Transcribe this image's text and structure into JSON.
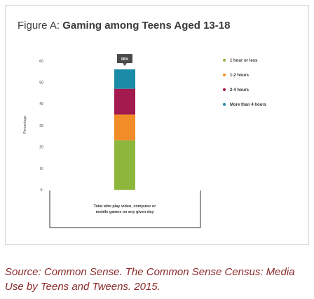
{
  "figure": {
    "prefix": "Figure A:",
    "title": "Gaming among Teens Aged 13-18"
  },
  "source": "Source: Common Sense. The Common Sense Census: Media Use by Teens and Tweens. 2015.",
  "chart_data": {
    "type": "bar",
    "stacked": true,
    "title": "Gaming among Teens Aged 13-18",
    "ylabel": "Percentage",
    "xlabel": "",
    "ylim": [
      0,
      65
    ],
    "yticks": [
      0,
      10,
      20,
      30,
      40,
      50,
      60
    ],
    "categories": [
      "Total who play video, computer or mobile games on any given day"
    ],
    "total_label": "56%",
    "legend_position": "right",
    "grid": false,
    "series": [
      {
        "name": "1 hour or less",
        "values": [
          23
        ],
        "color": "#8cb63c"
      },
      {
        "name": "1-2 hours",
        "values": [
          12
        ],
        "color": "#f28c28"
      },
      {
        "name": "2-4 hours",
        "values": [
          12
        ],
        "color": "#a31a4e"
      },
      {
        "name": "More than 4 hours",
        "values": [
          9
        ],
        "color": "#1a8ca8"
      }
    ]
  }
}
